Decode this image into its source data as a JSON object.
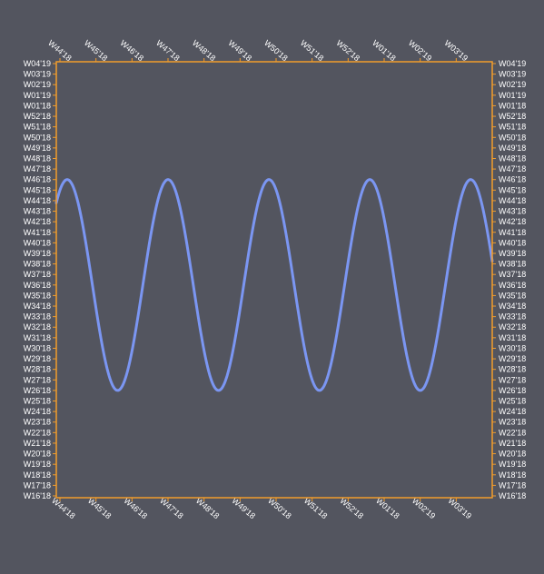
{
  "colors": {
    "background": "#53555f",
    "frame": "#f29d2c",
    "line": "#7b96f2",
    "label": "#ffffff"
  },
  "chart_data": {
    "type": "line",
    "title": "",
    "xlabel": "",
    "ylabel": "",
    "grid": false,
    "x_axis": {
      "unit": "ISO week",
      "min": "W44'18",
      "max": "W04'19",
      "tick_labels": [
        "W44'18",
        "W45'18",
        "W46'18",
        "W47'18",
        "W48'18",
        "W49'18",
        "W50'18",
        "W51'18",
        "W52'18",
        "W01'18",
        "W02'19",
        "W03'19"
      ],
      "positions": [
        "top",
        "bottom"
      ]
    },
    "y_axis": {
      "unit": "ISO week",
      "min": "W16'18",
      "max": "W04'19",
      "tick_labels": [
        "W16'18",
        "W17'18",
        "W18'18",
        "W19'18",
        "W20'18",
        "W21'18",
        "W22'18",
        "W23'18",
        "W24'18",
        "W25'18",
        "W26'18",
        "W27'18",
        "W28'18",
        "W29'18",
        "W30'18",
        "W31'18",
        "W32'18",
        "W33'18",
        "W34'18",
        "W35'18",
        "W36'18",
        "W37'18",
        "W38'18",
        "W39'18",
        "W40'18",
        "W41'18",
        "W42'18",
        "W43'18",
        "W44'18",
        "W45'18",
        "W46'18",
        "W47'18",
        "W48'18",
        "W49'18",
        "W50'18",
        "W51'18",
        "W52'18",
        "W01'18",
        "W01'19",
        "W02'19",
        "W03'19",
        "W04'19"
      ],
      "positions": [
        "left",
        "right"
      ]
    },
    "series": [
      {
        "curve": "sinusoid",
        "min": "W26'18",
        "max": "W46'18",
        "period_weeks": 2.8,
        "x_start": "W44'18",
        "y_start": "W44.5'18",
        "peaks_x": [
          "W44.2'18",
          "W47'18",
          "W49.8'18",
          "W52.6'18",
          "W03.4'19"
        ],
        "troughs_x": [
          "W45.6'18",
          "W48.4'18",
          "W51.2'18",
          "W02'19"
        ]
      }
    ]
  }
}
